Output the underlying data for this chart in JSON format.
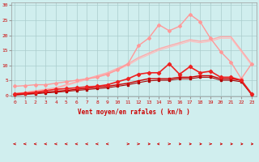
{
  "x": [
    0,
    1,
    2,
    3,
    4,
    5,
    6,
    7,
    8,
    9,
    10,
    11,
    12,
    13,
    14,
    15,
    16,
    17,
    18,
    19,
    20,
    21,
    22,
    23
  ],
  "background_color": "#d0eeee",
  "grid_color": "#aacccc",
  "xlabel": "Vent moyen/en rafales ( km/h )",
  "yticks": [
    0,
    5,
    10,
    15,
    20,
    25,
    30
  ],
  "ylim": [
    -0.5,
    31
  ],
  "xlim": [
    -0.3,
    23.5
  ],
  "lines": [
    {
      "y": [
        3.0,
        3.2,
        3.5,
        3.5,
        4.0,
        4.5,
        5.0,
        5.5,
        6.0,
        7.0,
        8.5,
        10.5,
        16.5,
        19.0,
        23.5,
        21.5,
        23.0,
        27.0,
        24.5,
        19.0,
        14.5,
        11.0,
        5.5,
        10.5
      ],
      "color": "#ff9999",
      "lw": 1.0,
      "marker": "D",
      "markersize": 2.0,
      "zorder": 3
    },
    {
      "y": [
        0.5,
        1.0,
        1.5,
        2.0,
        2.5,
        3.5,
        4.5,
        5.5,
        6.5,
        7.5,
        9.0,
        10.5,
        12.5,
        14.0,
        15.5,
        16.5,
        17.5,
        18.5,
        18.0,
        18.5,
        19.5,
        19.5,
        15.0,
        10.5
      ],
      "color": "#ffaaaa",
      "lw": 1.0,
      "marker": null,
      "markersize": 0,
      "zorder": 2
    },
    {
      "y": [
        0.3,
        0.8,
        1.2,
        1.8,
        2.2,
        3.2,
        4.2,
        5.2,
        6.2,
        7.2,
        8.5,
        10.0,
        12.0,
        13.5,
        15.0,
        16.0,
        17.0,
        18.0,
        17.5,
        18.0,
        19.0,
        19.0,
        14.5,
        10.0
      ],
      "color": "#ffbbbb",
      "lw": 0.8,
      "marker": null,
      "markersize": 0,
      "zorder": 1
    },
    {
      "y": [
        0.5,
        0.7,
        1.0,
        1.5,
        2.0,
        2.2,
        2.5,
        2.8,
        3.0,
        3.5,
        4.5,
        5.5,
        7.0,
        7.5,
        7.5,
        10.5,
        7.0,
        9.5,
        7.5,
        8.0,
        6.0,
        6.0,
        5.0,
        0.5
      ],
      "color": "#ee2222",
      "lw": 1.2,
      "marker": "D",
      "markersize": 2.2,
      "zorder": 6
    },
    {
      "y": [
        0.2,
        0.4,
        0.7,
        1.0,
        1.3,
        1.6,
        2.0,
        2.3,
        2.7,
        3.0,
        3.5,
        4.0,
        4.8,
        5.5,
        5.5,
        5.5,
        6.0,
        6.0,
        6.5,
        6.5,
        5.5,
        5.5,
        5.0,
        0.3
      ],
      "color": "#cc0000",
      "lw": 1.0,
      "marker": "s",
      "markersize": 1.8,
      "zorder": 5
    },
    {
      "y": [
        0.1,
        0.3,
        0.5,
        0.8,
        1.0,
        1.3,
        1.6,
        1.9,
        2.2,
        2.5,
        3.0,
        3.5,
        4.2,
        4.8,
        5.0,
        5.0,
        5.5,
        5.5,
        6.0,
        6.0,
        5.0,
        5.0,
        4.5,
        0.2
      ],
      "color": "#aa0000",
      "lw": 0.8,
      "marker": "s",
      "markersize": 1.5,
      "zorder": 4
    }
  ],
  "arrow_angles": [
    315,
    315,
    315,
    315,
    315,
    315,
    315,
    315,
    315,
    315,
    180,
    135,
    135,
    90,
    270,
    45,
    90,
    90,
    90,
    45,
    90,
    90,
    90,
    90
  ],
  "arrow_color": "#cc0000",
  "ylabel_color": "#cc0000",
  "tick_color": "#cc0000"
}
